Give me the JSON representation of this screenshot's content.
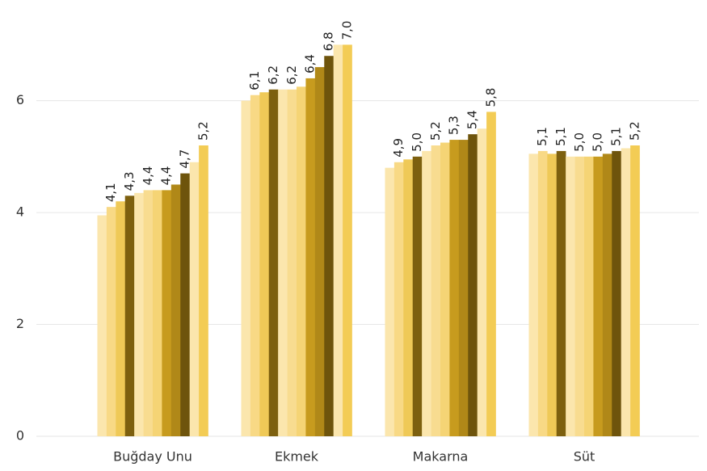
{
  "chart_data": {
    "type": "bar",
    "categories": [
      "Buğday Unu",
      "Ekmek",
      "Makarna",
      "Süt"
    ],
    "ylim": [
      0,
      7.8
    ],
    "yticks": [
      0,
      2,
      4,
      6
    ],
    "grid": true,
    "series": [
      {
        "color": "#fbe6ad",
        "values": [
          3.95,
          6.0,
          4.8,
          5.05
        ]
      },
      {
        "color": "#f8d985",
        "values": [
          4.1,
          6.1,
          4.9,
          5.1
        ],
        "value_labels": [
          "4,1",
          "6,1",
          "4,9",
          "5,1"
        ]
      },
      {
        "color": "#efc957",
        "values": [
          4.2,
          6.15,
          4.95,
          5.05
        ]
      },
      {
        "color": "#7d600f",
        "values": [
          4.3,
          6.2,
          5.0,
          5.1
        ],
        "value_labels": [
          "4,3",
          "6,2",
          "5,0",
          "5,1"
        ]
      },
      {
        "color": "#fbe6ad",
        "values": [
          4.35,
          6.2,
          5.1,
          5.0
        ]
      },
      {
        "color": "#f8dc90",
        "values": [
          4.4,
          6.2,
          5.2,
          5.0
        ],
        "value_labels": [
          "4,4",
          "6,2",
          "5,2",
          "5,0"
        ]
      },
      {
        "color": "#f5d475",
        "values": [
          4.4,
          6.25,
          5.25,
          5.0
        ]
      },
      {
        "color": "#c79b1e",
        "values": [
          4.4,
          6.4,
          5.3,
          5.0
        ],
        "value_labels": [
          "4,4",
          "6,4",
          "5,3",
          "5,0"
        ]
      },
      {
        "color": "#b08818",
        "values": [
          4.5,
          6.6,
          5.3,
          5.05
        ]
      },
      {
        "color": "#6e540c",
        "values": [
          4.7,
          6.8,
          5.4,
          5.1
        ],
        "value_labels": [
          "4,7",
          "6,8",
          "5,4",
          "5,1"
        ]
      },
      {
        "color": "#fbe6ad",
        "values": [
          4.9,
          7.0,
          5.5,
          5.15
        ]
      },
      {
        "color": "#f3cc55",
        "values": [
          5.2,
          7.0,
          5.8,
          5.2
        ],
        "value_labels": [
          "5,2",
          "7,0",
          "5,8",
          "5,2"
        ]
      }
    ]
  }
}
